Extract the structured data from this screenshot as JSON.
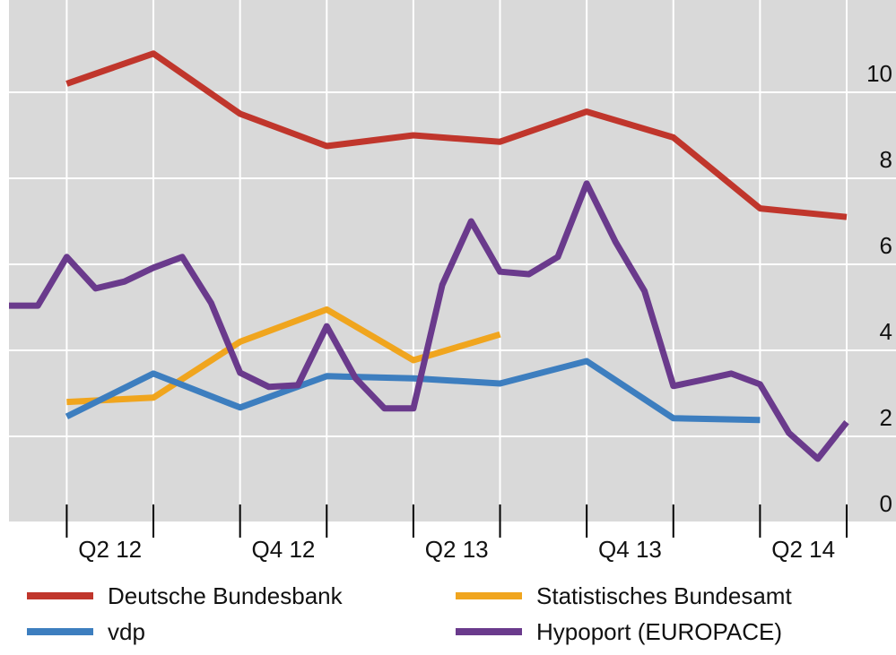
{
  "chart_data": {
    "type": "line",
    "xlim": [
      -2,
      27
    ],
    "ylim": [
      0,
      12
    ],
    "xtick_marks": [
      0,
      3,
      6,
      9,
      12,
      15,
      18,
      21,
      24,
      27
    ],
    "xticks": [
      {
        "value": 1.5,
        "label": "Q2 12"
      },
      {
        "value": 7.5,
        "label": "Q4 12"
      },
      {
        "value": 13.5,
        "label": "Q2 13"
      },
      {
        "value": 19.5,
        "label": "Q4 13"
      },
      {
        "value": 25.5,
        "label": "Q2 14"
      }
    ],
    "yticks": [
      0,
      2,
      4,
      6,
      8,
      10
    ],
    "grid": true,
    "y_axis_side": "right",
    "series": [
      {
        "name": "Deutsche Bundesbank",
        "color": "#c0362c",
        "x": [
          0,
          3,
          6,
          9,
          12,
          15,
          18,
          21,
          24,
          27
        ],
        "values": [
          10.2,
          10.9,
          9.5,
          8.75,
          9.0,
          8.85,
          9.55,
          8.95,
          7.3,
          7.1
        ]
      },
      {
        "name": "Statistisches Bundesamt",
        "color": "#f0a51e",
        "x": [
          0,
          3,
          6,
          9,
          12,
          15
        ],
        "values": [
          2.8,
          2.9,
          4.2,
          4.95,
          3.77,
          4.37
        ]
      },
      {
        "name": "vdp",
        "color": "#3d7ebf",
        "x": [
          0,
          3,
          6,
          9,
          12,
          15,
          18,
          21,
          24
        ],
        "values": [
          2.46,
          3.46,
          2.67,
          3.4,
          3.35,
          3.23,
          3.75,
          2.42,
          2.38
        ]
      },
      {
        "name": "Hypoport (EUROPACE)",
        "color": "#6a3a8c",
        "x": [
          -2,
          -1,
          0,
          1,
          2,
          3,
          4,
          5,
          6,
          7,
          8,
          9,
          10,
          11,
          12,
          13,
          14,
          15,
          16,
          17,
          18,
          19,
          20,
          21,
          22,
          23,
          24,
          25,
          26,
          27
        ],
        "values": [
          5.04,
          5.04,
          6.17,
          5.44,
          5.6,
          5.92,
          6.17,
          5.1,
          3.48,
          3.15,
          3.19,
          4.56,
          3.35,
          2.65,
          2.65,
          5.52,
          7.0,
          5.83,
          5.77,
          6.17,
          7.88,
          6.52,
          5.38,
          3.17,
          3.31,
          3.46,
          3.21,
          2.08,
          1.48,
          2.33
        ]
      }
    ]
  }
}
